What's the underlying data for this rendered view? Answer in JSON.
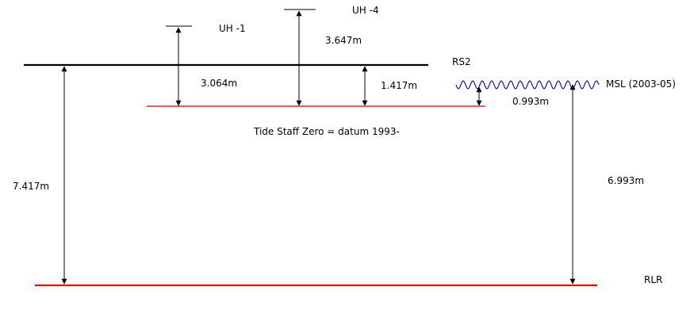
{
  "labels": {
    "uh1": "UH -1",
    "uh4": "UH -4",
    "rs2": "RS2",
    "msl": "MSL (2003-05)",
    "rlr": "RLR",
    "tide_staff_zero": "Tide Staff Zero = datum 1993-"
  },
  "measurements": {
    "uh4_to_tsz": "3.647m",
    "uh1_to_tsz": "3.064m",
    "rs2_to_tsz": "1.417m",
    "msl_to_tsz": "0.993m",
    "rs2_to_rlr": "7.417m",
    "msl_to_rlr": "6.993m"
  },
  "colors": {
    "rs2_line": "#000000",
    "tsz_line": "#cc0000",
    "rlr_line": "#ee0000",
    "msl_wave": "#0000ee",
    "arrows": "#000000"
  }
}
